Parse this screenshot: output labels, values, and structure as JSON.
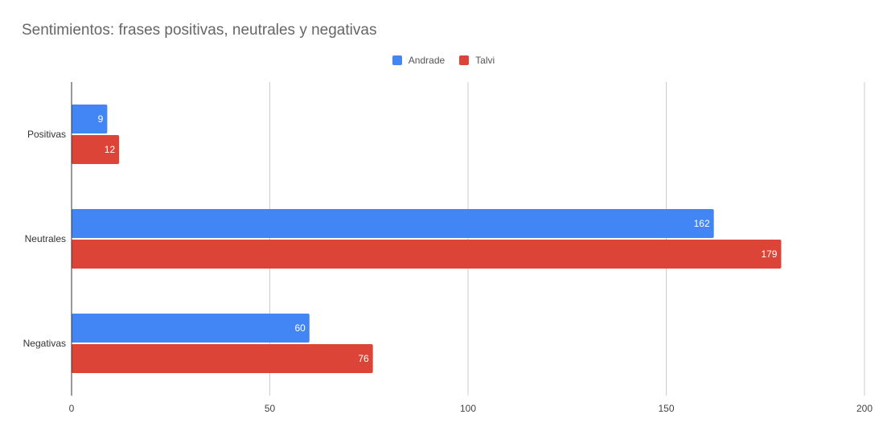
{
  "chart_data": {
    "type": "bar",
    "orientation": "horizontal",
    "title": "Sentimientos: frases positivas, neutrales y negativas",
    "categories": [
      "Positivas",
      "Neutrales",
      "Negativas"
    ],
    "series": [
      {
        "name": "Andrade",
        "values": [
          9,
          162,
          60
        ],
        "color": "#4285F4"
      },
      {
        "name": "Talvi",
        "values": [
          12,
          179,
          76
        ],
        "color": "#DB4437"
      }
    ],
    "xlim": [
      0,
      200
    ],
    "xticks": [
      "0",
      "50",
      "100",
      "150",
      "200"
    ],
    "xlabel": "",
    "ylabel": "",
    "legend": "top-center",
    "grid": true
  }
}
